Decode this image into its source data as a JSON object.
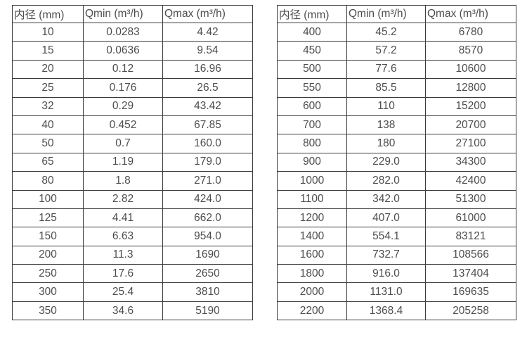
{
  "page": {
    "background": "#ffffff",
    "text_color": "#4d4d4d",
    "border_color": "#3c3c3c"
  },
  "chart_data": [
    {
      "type": "table",
      "title": "",
      "columns": [
        "内径 (mm)",
        "Qmin (m³/h)",
        "Qmax (m³/h)"
      ],
      "rows": [
        [
          "10",
          "0.0283",
          "4.42"
        ],
        [
          "15",
          "0.0636",
          "9.54"
        ],
        [
          "20",
          "0.12",
          "16.96"
        ],
        [
          "25",
          "0.176",
          "26.5"
        ],
        [
          "32",
          "0.29",
          "43.42"
        ],
        [
          "40",
          "0.452",
          "67.85"
        ],
        [
          "50",
          "0.7",
          "160.0"
        ],
        [
          "65",
          "1.19",
          "179.0"
        ],
        [
          "80",
          "1.8",
          "271.0"
        ],
        [
          "100",
          "2.82",
          "424.0"
        ],
        [
          "125",
          "4.41",
          "662.0"
        ],
        [
          "150",
          "6.63",
          "954.0"
        ],
        [
          "200",
          "11.3",
          "1690"
        ],
        [
          "250",
          "17.6",
          "2650"
        ],
        [
          "300",
          "25.4",
          "3810"
        ],
        [
          "350",
          "34.6",
          "5190"
        ]
      ]
    },
    {
      "type": "table",
      "title": "",
      "columns": [
        "内径 (mm)",
        "Qmin (m³/h)",
        "Qmax (m³/h)"
      ],
      "rows": [
        [
          "400",
          "45.2",
          "6780"
        ],
        [
          "450",
          "57.2",
          "8570"
        ],
        [
          "500",
          "77.6",
          "10600"
        ],
        [
          "550",
          "85.5",
          "12800"
        ],
        [
          "600",
          "110",
          "15200"
        ],
        [
          "700",
          "138",
          "20700"
        ],
        [
          "800",
          "180",
          "27100"
        ],
        [
          "900",
          "229.0",
          "34300"
        ],
        [
          "1000",
          "282.0",
          "42400"
        ],
        [
          "1100",
          "342.0",
          "51300"
        ],
        [
          "1200",
          "407.0",
          "61000"
        ],
        [
          "1400",
          "554.1",
          "83121"
        ],
        [
          "1600",
          "732.7",
          "108566"
        ],
        [
          "1800",
          "916.0",
          "137404"
        ],
        [
          "2000",
          "1131.0",
          "169635"
        ],
        [
          "2200",
          "1368.4",
          "205258"
        ]
      ]
    }
  ]
}
